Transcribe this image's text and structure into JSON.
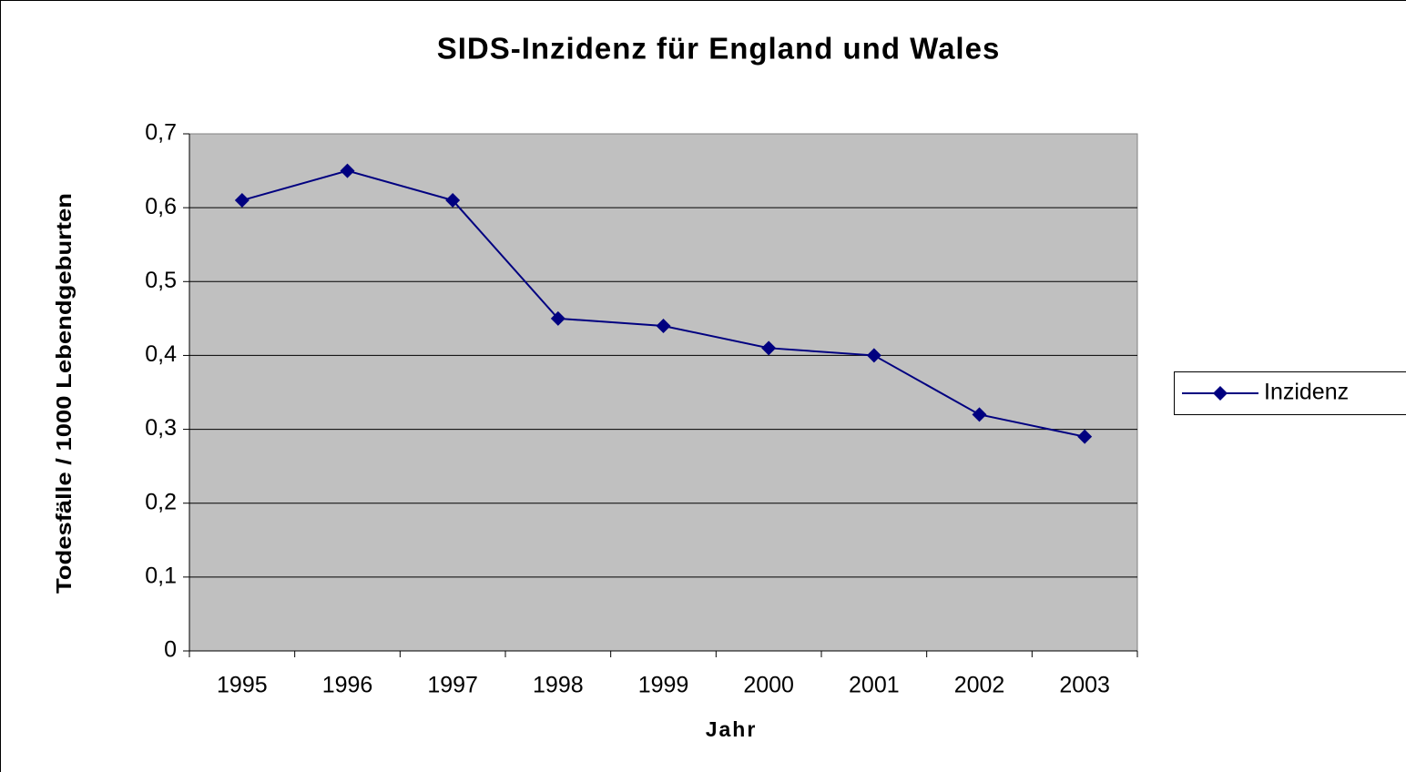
{
  "chart_data": {
    "type": "line",
    "title": "SIDS-Inzidenz für England und Wales",
    "xlabel": "Jahr",
    "ylabel": "Todesfälle / 1000 Lebendgeburten",
    "categories": [
      "1995",
      "1996",
      "1997",
      "1998",
      "1999",
      "2000",
      "2001",
      "2002",
      "2003"
    ],
    "series": [
      {
        "name": "Inzidenz",
        "color": "#000080",
        "values": [
          0.61,
          0.65,
          0.61,
          0.45,
          0.44,
          0.41,
          0.4,
          0.32,
          0.29
        ]
      }
    ],
    "ylim": [
      0,
      0.7
    ],
    "yticks": [
      0,
      {
        "value": 0.1,
        "label": "0,1"
      },
      {
        "value": 0.2,
        "label": "0,2"
      },
      {
        "value": 0.3,
        "label": "0,3"
      },
      {
        "value": 0.4,
        "label": "0,4"
      },
      {
        "value": 0.5,
        "label": "0,5"
      },
      {
        "value": 0.6,
        "label": "0,6"
      },
      {
        "value": 0.7,
        "label": "0,7"
      }
    ],
    "grid": true,
    "legend": "right",
    "plot_background": "#c0c0c0"
  }
}
